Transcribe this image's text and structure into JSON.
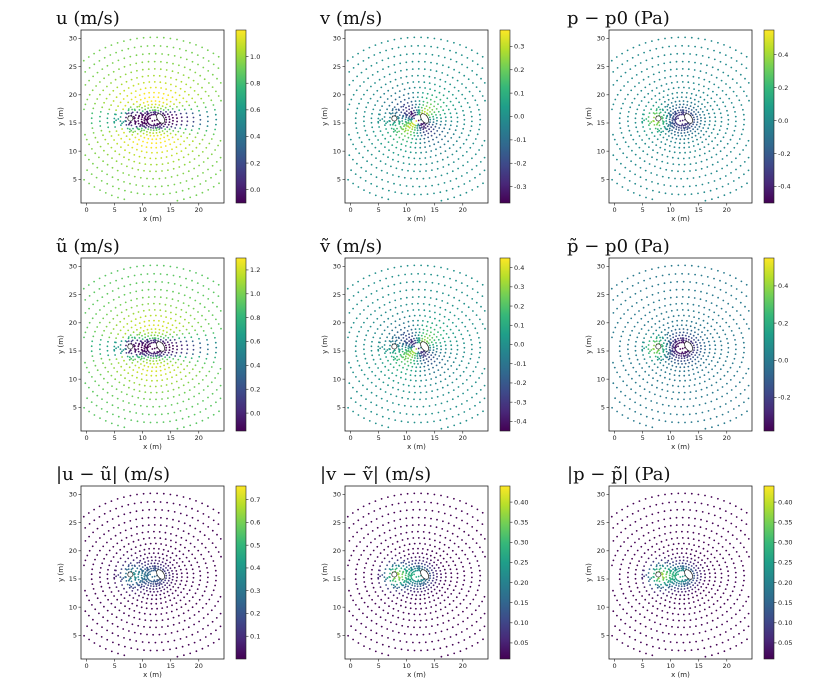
{
  "chart_data": [
    {
      "type": "scatter",
      "title": "u  (m/s)",
      "xlabel": "x (m)",
      "ylabel": "y (m)",
      "xlim": [
        -1,
        24.5
      ],
      "ylim": [
        0.8,
        31.5
      ],
      "xticks": [
        0,
        5,
        10,
        15,
        20
      ],
      "yticks": [
        5,
        10,
        15,
        20,
        25,
        30
      ],
      "colorbar": {
        "min": -0.1,
        "max": 1.2,
        "ticks": [
          0.0,
          0.2,
          0.4,
          0.6,
          0.8,
          1.0
        ]
      },
      "field": "u"
    },
    {
      "type": "scatter",
      "title": "v  (m/s)",
      "xlabel": "x (m)",
      "ylabel": "y (m)",
      "xlim": [
        -1,
        24.5
      ],
      "ylim": [
        0.8,
        31.5
      ],
      "xticks": [
        0,
        5,
        10,
        15,
        20
      ],
      "yticks": [
        5,
        10,
        15,
        20,
        25,
        30
      ],
      "colorbar": {
        "min": -0.37,
        "max": 0.37,
        "ticks": [
          -0.3,
          -0.2,
          -0.1,
          0.0,
          0.1,
          0.2,
          0.3
        ]
      },
      "field": "v"
    },
    {
      "type": "scatter",
      "title": "p − p0  (Pa)",
      "xlabel": "x (m)",
      "ylabel": "y (m)",
      "xlim": [
        -1,
        24.5
      ],
      "ylim": [
        0.8,
        31.5
      ],
      "xticks": [
        0,
        5,
        10,
        15,
        20
      ],
      "yticks": [
        5,
        10,
        15,
        20,
        25,
        30
      ],
      "colorbar": {
        "min": -0.5,
        "max": 0.55,
        "ticks": [
          -0.4,
          -0.2,
          0.0,
          0.2,
          0.4
        ]
      },
      "field": "p"
    },
    {
      "type": "scatter",
      "title": "ũ  (m/s)",
      "xlabel": "x (m)",
      "ylabel": "y (m)",
      "xlim": [
        -1,
        24.5
      ],
      "ylim": [
        0.8,
        31.5
      ],
      "xticks": [
        0,
        5,
        10,
        15,
        20
      ],
      "yticks": [
        5,
        10,
        15,
        20,
        25,
        30
      ],
      "colorbar": {
        "min": -0.15,
        "max": 1.3,
        "ticks": [
          0.0,
          0.2,
          0.4,
          0.6,
          0.8,
          1.0,
          1.2
        ]
      },
      "field": "u"
    },
    {
      "type": "scatter",
      "title": "ṽ  (m/s)",
      "xlabel": "x (m)",
      "ylabel": "y (m)",
      "xlim": [
        -1,
        24.5
      ],
      "ylim": [
        0.8,
        31.5
      ],
      "xticks": [
        0,
        5,
        10,
        15,
        20
      ],
      "yticks": [
        5,
        10,
        15,
        20,
        25,
        30
      ],
      "colorbar": {
        "min": -0.45,
        "max": 0.45,
        "ticks": [
          -0.4,
          -0.3,
          -0.2,
          -0.1,
          0.0,
          0.1,
          0.2,
          0.3,
          0.4
        ]
      },
      "field": "v"
    },
    {
      "type": "scatter",
      "title": "p̃ − p0  (Pa)",
      "xlabel": "x (m)",
      "ylabel": "y (m)",
      "xlim": [
        -1,
        24.5
      ],
      "ylim": [
        0.8,
        31.5
      ],
      "xticks": [
        0,
        5,
        10,
        15,
        20
      ],
      "yticks": [
        5,
        10,
        15,
        20,
        25,
        30
      ],
      "colorbar": {
        "min": -0.38,
        "max": 0.55,
        "ticks": [
          -0.2,
          0.0,
          0.2,
          0.4
        ]
      },
      "field": "p"
    },
    {
      "type": "scatter",
      "title": "|u − ũ|  (m/s)",
      "xlabel": "x (m)",
      "ylabel": "y (m)",
      "xlim": [
        -1,
        24.5
      ],
      "ylim": [
        0.8,
        31.5
      ],
      "xticks": [
        0,
        5,
        10,
        15,
        20
      ],
      "yticks": [
        5,
        10,
        15,
        20,
        25,
        30
      ],
      "colorbar": {
        "min": 0.0,
        "max": 0.76,
        "ticks": [
          0.1,
          0.2,
          0.3,
          0.4,
          0.5,
          0.6,
          0.7
        ]
      },
      "field": "e"
    },
    {
      "type": "scatter",
      "title": "|v − ṽ|  (m/s)",
      "xlabel": "x (m)",
      "ylabel": "y (m)",
      "xlim": [
        -1,
        24.5
      ],
      "ylim": [
        0.8,
        31.5
      ],
      "xticks": [
        0,
        5,
        10,
        15,
        20
      ],
      "yticks": [
        5,
        10,
        15,
        20,
        25,
        30
      ],
      "colorbar": {
        "min": 0.01,
        "max": 0.44,
        "ticks": [
          0.05,
          0.1,
          0.15,
          0.2,
          0.25,
          0.3,
          0.35,
          0.4
        ]
      },
      "field": "e"
    },
    {
      "type": "scatter",
      "title": "|p − p̃|  (Pa)",
      "xlabel": "x (m)",
      "ylabel": "y (m)",
      "xlim": [
        -1,
        24.5
      ],
      "ylim": [
        0.8,
        31.5
      ],
      "xticks": [
        0,
        5,
        10,
        15,
        20
      ],
      "yticks": [
        5,
        10,
        15,
        20,
        25,
        30
      ],
      "colorbar": {
        "min": 0.01,
        "max": 0.44,
        "ticks": [
          0.05,
          0.1,
          0.15,
          0.2,
          0.25,
          0.3,
          0.35,
          0.4
        ]
      },
      "field": "e"
    }
  ],
  "colors": {
    "viridis": [
      "#440154",
      "#482878",
      "#3e4989",
      "#31688e",
      "#26828e",
      "#1f9e89",
      "#35b779",
      "#6ece58",
      "#b5de2b",
      "#fde725"
    ]
  }
}
